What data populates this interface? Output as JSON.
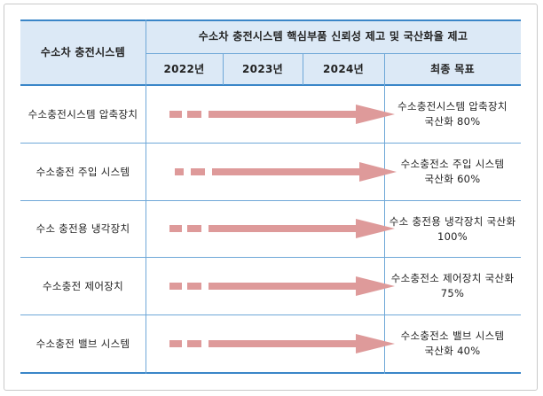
{
  "header": {
    "system_col": "수소차 충전시스템",
    "group_title": "수소차 충전시스템 핵심부품 신뢰성 제고 및 국산화율 제고",
    "years": [
      "2022년",
      "2023년",
      "2024년"
    ],
    "goal_col": "최종 목표"
  },
  "rows": [
    {
      "system": "수소충전시스템 압축장치",
      "goal": "수소충전시스템 압축장치\n국산화 80%"
    },
    {
      "system": "수소충전 주입 시스템",
      "goal": "수소충전소 주입 시스템\n국산화 60%"
    },
    {
      "system": "수소 충전용 냉각장치",
      "goal": "수소 충전용 냉각장치 국산화\n100%"
    },
    {
      "system": "수소충전 제어장치",
      "goal": "수소충전소 제어장치 국산화\n75%"
    },
    {
      "system": "수소충전 밸브 시스템",
      "goal": "수소충전소 밸브 시스템\n국산화 40%"
    }
  ],
  "colors": {
    "header_bg": "#dce9f6",
    "border": "#3a86c8",
    "arrow": "#de9a9a"
  }
}
